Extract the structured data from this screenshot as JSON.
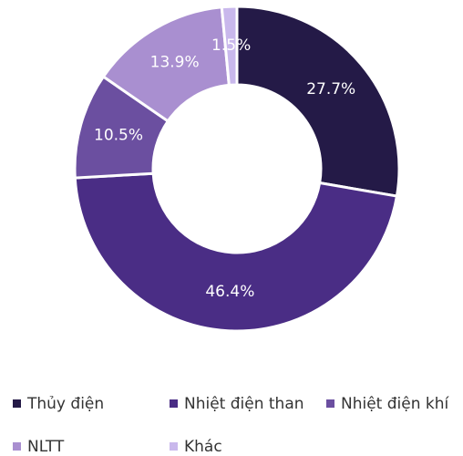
{
  "chart_data": {
    "type": "donut",
    "categories": [
      "Thủy điện",
      "Nhiệt điện than",
      "Nhiệt điện khí",
      "NLTT",
      "Khác"
    ],
    "values": [
      27.7,
      46.4,
      10.5,
      13.9,
      1.5
    ],
    "value_labels": [
      "27.7%",
      "46.4%",
      "10.5%",
      "13.9%",
      "1.5%"
    ],
    "colors": [
      "#241a47",
      "#4a2d85",
      "#6b4fa0",
      "#a98fd0",
      "#c9b8ec"
    ]
  }
}
